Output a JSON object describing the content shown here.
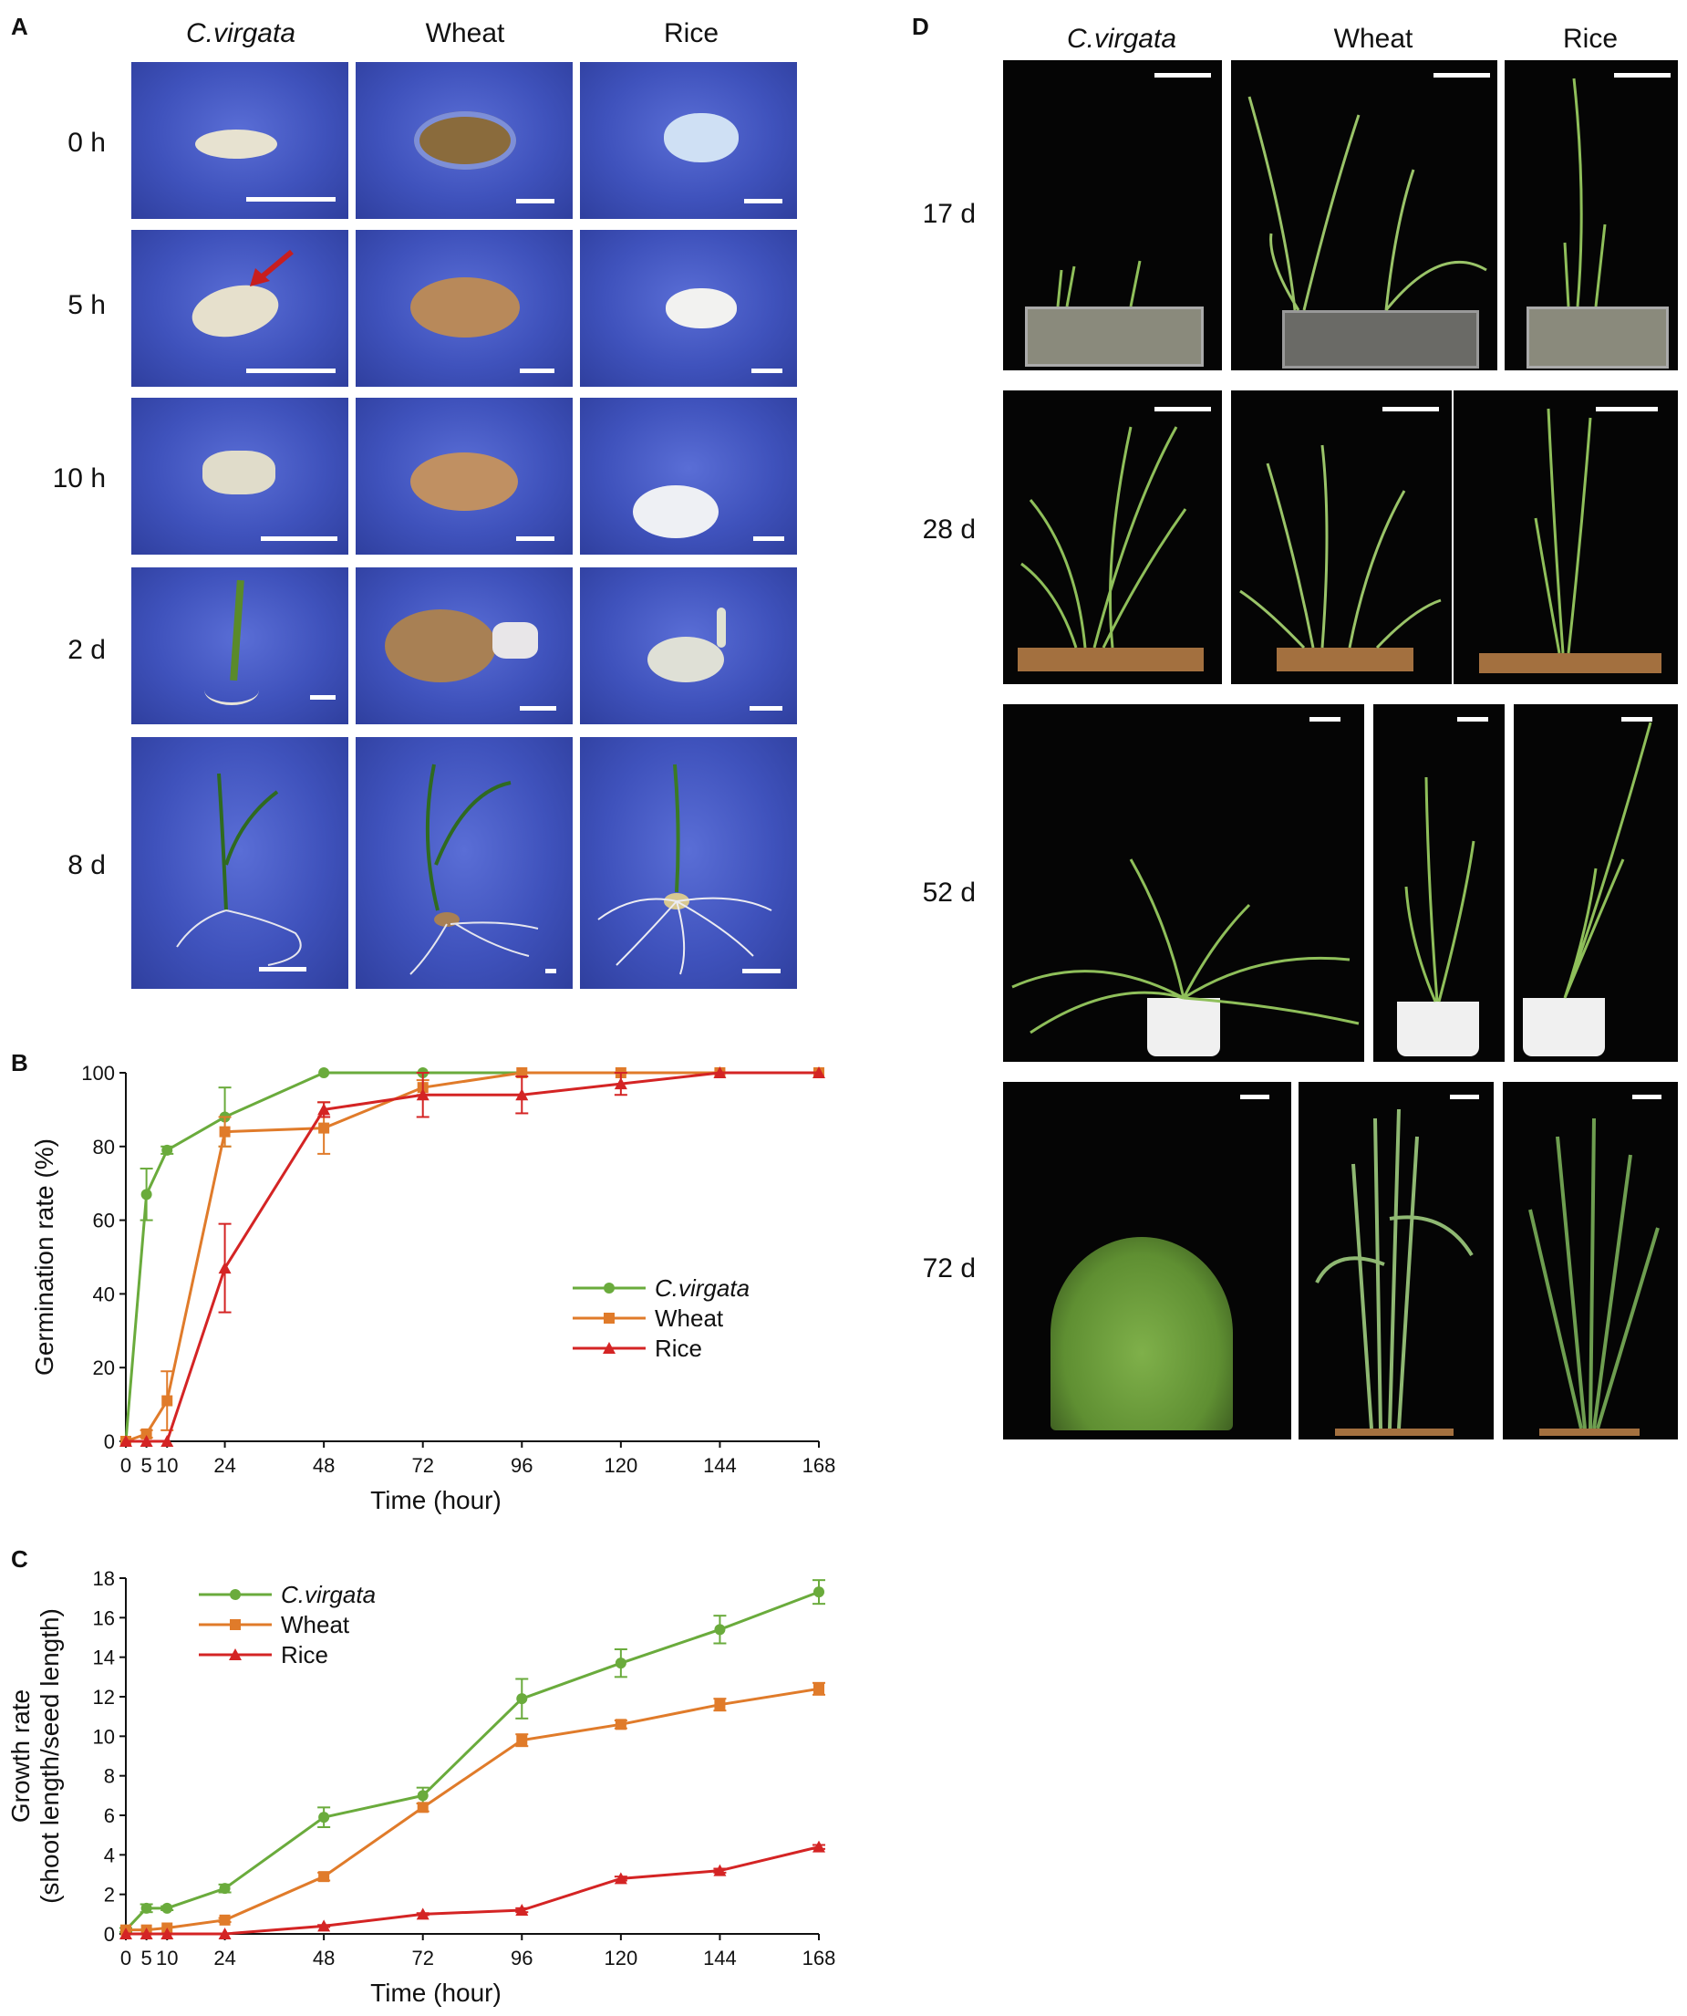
{
  "panel_a": {
    "letter": "A",
    "columns": [
      "C.virgata",
      "Wheat",
      "Rice"
    ],
    "rows": [
      "0 h",
      "5 h",
      "10 h",
      "2 d",
      "8 d"
    ]
  },
  "panel_b": {
    "letter": "B"
  },
  "panel_c": {
    "letter": "C"
  },
  "panel_d": {
    "letter": "D",
    "columns": [
      "C.virgata",
      "Wheat",
      "Rice"
    ],
    "rows": [
      "17 d",
      "28 d",
      "52 d",
      "72 d"
    ]
  },
  "colors": {
    "c_virgata": "#6aab3c",
    "wheat": "#e07b2a",
    "rice": "#d42424",
    "photo_blue": "#3f52bc",
    "arrow": "#c81e1e"
  },
  "icons": {
    "arrow": "red-arrow-icon",
    "scalebar": "scale-bar-icon"
  },
  "chart_data": [
    {
      "type": "line",
      "panel": "B",
      "x": [
        0,
        5,
        10,
        24,
        48,
        72,
        96,
        120,
        144,
        168
      ],
      "xticks": [
        "0",
        "5",
        "10",
        "24",
        "48",
        "72",
        "96",
        "120",
        "144",
        "168"
      ],
      "xlabel": "Time (hour)",
      "ylabel": "Germination rate (%)",
      "ylim": [
        0,
        100
      ],
      "yticks": [
        "0",
        "20",
        "40",
        "60",
        "80",
        "100"
      ],
      "legend_position": "center-right",
      "series": [
        {
          "name": "C.virgata",
          "italic": true,
          "color": "#6aab3c",
          "marker": "circle",
          "values": [
            0,
            67,
            79,
            88,
            100,
            100,
            100,
            100,
            100,
            100
          ],
          "errors": [
            0,
            7,
            1,
            8,
            0,
            0,
            0,
            0,
            0,
            0
          ]
        },
        {
          "name": "Wheat",
          "italic": false,
          "color": "#e07b2a",
          "marker": "square",
          "values": [
            0,
            2,
            11,
            84,
            85,
            96,
            100,
            100,
            100,
            100
          ],
          "errors": [
            0,
            1,
            8,
            4,
            7,
            2,
            0,
            0,
            0,
            0
          ]
        },
        {
          "name": "Rice",
          "italic": false,
          "color": "#d42424",
          "marker": "triangle",
          "values": [
            0,
            0,
            0,
            47,
            90,
            94,
            94,
            97,
            100,
            100
          ],
          "errors": [
            0,
            0,
            0,
            12,
            2,
            6,
            5,
            3,
            0,
            0
          ]
        }
      ]
    },
    {
      "type": "line",
      "panel": "C",
      "x": [
        0,
        5,
        10,
        24,
        48,
        72,
        96,
        120,
        144,
        168
      ],
      "xticks": [
        "0",
        "5",
        "10",
        "24",
        "48",
        "72",
        "96",
        "120",
        "144",
        "168"
      ],
      "xlabel": "Time (hour)",
      "ylabel": [
        "Growth rate",
        "(shoot length/seed length)"
      ],
      "ylim": [
        0,
        18
      ],
      "yticks": [
        "0",
        "2",
        "4",
        "6",
        "8",
        "10",
        "12",
        "14",
        "16",
        "18"
      ],
      "legend_position": "top-left",
      "series": [
        {
          "name": "C.virgata",
          "italic": true,
          "color": "#6aab3c",
          "marker": "circle",
          "values": [
            0.2,
            1.3,
            1.3,
            2.3,
            5.9,
            7.0,
            11.9,
            13.7,
            15.4,
            17.3
          ],
          "errors": [
            0.1,
            0.2,
            0.1,
            0.2,
            0.5,
            0.4,
            1.0,
            0.7,
            0.7,
            0.6
          ]
        },
        {
          "name": "Wheat",
          "italic": false,
          "color": "#e07b2a",
          "marker": "square",
          "values": [
            0.2,
            0.2,
            0.3,
            0.7,
            2.9,
            6.4,
            9.8,
            10.6,
            11.6,
            12.4
          ],
          "errors": [
            0,
            0,
            0,
            0.1,
            0.2,
            0.2,
            0.3,
            0.2,
            0.3,
            0.3
          ]
        },
        {
          "name": "Rice",
          "italic": false,
          "color": "#d42424",
          "marker": "triangle",
          "values": [
            0,
            0,
            0,
            0,
            0.4,
            1.0,
            1.2,
            2.8,
            3.2,
            4.4
          ],
          "errors": [
            0,
            0,
            0,
            0,
            0.05,
            0.05,
            0.1,
            0.1,
            0.1,
            0.1
          ]
        }
      ]
    }
  ]
}
